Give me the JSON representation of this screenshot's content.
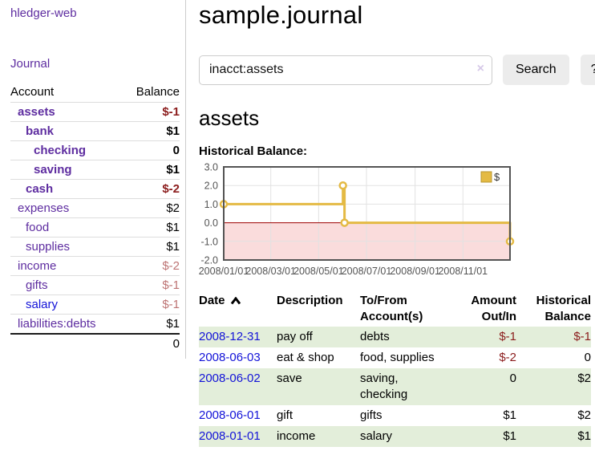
{
  "sidebar": {
    "app_title": "hledger-web",
    "journal_label": "Journal",
    "table": {
      "account_header": "Account",
      "balance_header": "Balance",
      "rows": [
        {
          "name": "assets",
          "balance": "$-1",
          "indent": 1,
          "bold": true,
          "balance_style": "neg-strong",
          "link_color": "purple"
        },
        {
          "name": "bank",
          "balance": "$1",
          "indent": 2,
          "bold": true,
          "balance_style": "normal",
          "link_color": "purple"
        },
        {
          "name": "checking",
          "balance": "0",
          "indent": 3,
          "bold": true,
          "balance_style": "normal",
          "link_color": "purple"
        },
        {
          "name": "saving",
          "balance": "$1",
          "indent": 3,
          "bold": true,
          "balance_style": "normal",
          "link_color": "purple"
        },
        {
          "name": "cash",
          "balance": "$-2",
          "indent": 2,
          "bold": true,
          "balance_style": "neg-strong",
          "link_color": "purple"
        },
        {
          "name": "expenses",
          "balance": "$2",
          "indent": 1,
          "bold": false,
          "balance_style": "normal",
          "link_color": "purple"
        },
        {
          "name": "food",
          "balance": "$1",
          "indent": 2,
          "bold": false,
          "balance_style": "normal",
          "link_color": "purple"
        },
        {
          "name": "supplies",
          "balance": "$1",
          "indent": 2,
          "bold": false,
          "balance_style": "normal",
          "link_color": "purple"
        },
        {
          "name": "income",
          "balance": "$-2",
          "indent": 1,
          "bold": false,
          "balance_style": "neg-soft",
          "link_color": "purple"
        },
        {
          "name": "gifts",
          "balance": "$-1",
          "indent": 2,
          "bold": false,
          "balance_style": "neg-soft",
          "link_color": "purple"
        },
        {
          "name": "salary",
          "balance": "$-1",
          "indent": 2,
          "bold": false,
          "balance_style": "neg-soft",
          "link_color": "blue"
        },
        {
          "name": "liabilities:debts",
          "balance": "$1",
          "indent": 1,
          "bold": false,
          "balance_style": "normal",
          "link_color": "purple"
        }
      ],
      "total": "0"
    }
  },
  "header": {
    "title": "sample.journal"
  },
  "search": {
    "query": "inacct:assets",
    "clear_icon": "×",
    "button_label": "Search",
    "help_label": "?"
  },
  "account_page": {
    "heading": "assets",
    "chart_title": "Historical Balance:"
  },
  "chart_data": {
    "type": "line",
    "step": true,
    "title": "Historical Balance",
    "series": [
      {
        "name": "$",
        "color": "#e4ba44",
        "points": [
          [
            "2008-01-01",
            1
          ],
          [
            "2008-06-01",
            2
          ],
          [
            "2008-06-03",
            0
          ],
          [
            "2008-12-31",
            -1
          ]
        ]
      }
    ],
    "xlim": [
      "2008-01-01",
      "2008-12-31"
    ],
    "ylim": [
      -2,
      3
    ],
    "x_ticks": [
      "2008/01/01",
      "2008/03/01",
      "2008/05/01",
      "2008/07/01",
      "2008/09/01",
      "2008/11/01"
    ],
    "y_ticks": [
      3.0,
      2.0,
      1.0,
      0.0,
      -1.0,
      -2.0
    ],
    "grid": true,
    "negative_region_color": "#fadcdc",
    "zero_line_color": "#9b0000",
    "plot_border_color": "#545454",
    "gridline_color": "#e2e2e2",
    "tick_label_color": "#545454",
    "legend": {
      "label": "$",
      "position": "top-right"
    }
  },
  "register": {
    "columns": {
      "date": "Date",
      "sort_icon": "chevron-up",
      "description": "Description",
      "accounts": "To/From Account(s)",
      "amount": "Amount Out/In",
      "balance": "Historical Balance"
    },
    "rows": [
      {
        "date": "2008-12-31",
        "description": "pay off",
        "accounts": "debts",
        "amount": "$-1",
        "balance": "$-1",
        "shaded": true
      },
      {
        "date": "2008-06-03",
        "description": "eat & shop",
        "accounts": "food, supplies",
        "amount": "$-2",
        "balance": "0",
        "shaded": false
      },
      {
        "date": "2008-06-02",
        "description": "save",
        "accounts": "saving, checking",
        "amount": "0",
        "balance": "$2",
        "shaded": true
      },
      {
        "date": "2008-06-01",
        "description": "gift",
        "accounts": "gifts",
        "amount": "$1",
        "balance": "$2",
        "shaded": false
      },
      {
        "date": "2008-01-01",
        "description": "income",
        "accounts": "salary",
        "amount": "$1",
        "balance": "$1",
        "shaded": true
      }
    ]
  },
  "colors": {
    "link_purple": "#5e2da0",
    "link_blue": "#1313d8",
    "negative_strong": "#8b1c1c",
    "negative_soft": "#bd7373",
    "row_shade_green": "#e3eeda",
    "button_gray": "#ececec",
    "divider_gray": "#cccccc"
  }
}
